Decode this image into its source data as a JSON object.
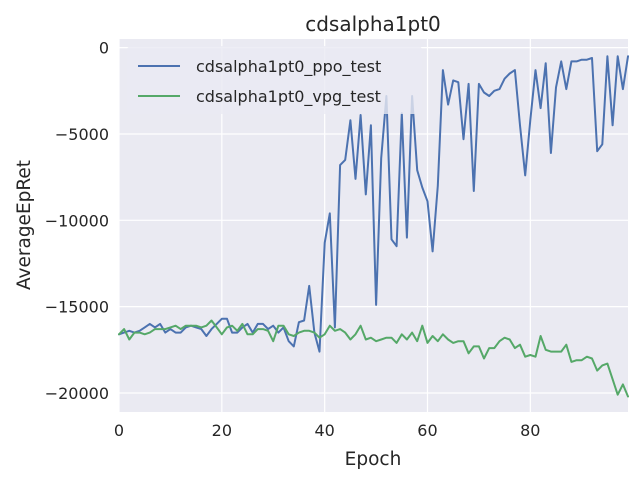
{
  "chart_data": {
    "type": "line",
    "title": "cdsalpha1pt0",
    "xlabel": "Epoch",
    "ylabel": "AverageEpRet",
    "xlim": [
      0,
      99
    ],
    "ylim": [
      -21100,
      500
    ],
    "xticks": [
      0,
      20,
      40,
      60,
      80
    ],
    "yticks": [
      0,
      -5000,
      -10000,
      -15000,
      -20000
    ],
    "xtick_labels": [
      "0",
      "20",
      "40",
      "60",
      "80"
    ],
    "ytick_labels": [
      "0",
      "−5000",
      "−10000",
      "−15000",
      "−20000"
    ],
    "grid": true,
    "legend_position": "top-left",
    "series": [
      {
        "name": "cdsalpha1pt0_ppo_test",
        "color": "#4c72b0",
        "x": [
          0,
          1,
          2,
          3,
          4,
          5,
          6,
          7,
          8,
          9,
          10,
          11,
          12,
          13,
          14,
          15,
          16,
          17,
          18,
          19,
          20,
          21,
          22,
          23,
          24,
          25,
          26,
          27,
          28,
          29,
          30,
          31,
          32,
          33,
          34,
          35,
          36,
          37,
          38,
          39,
          40,
          41,
          42,
          43,
          44,
          45,
          46,
          47,
          48,
          49,
          50,
          51,
          52,
          53,
          54,
          55,
          56,
          57,
          58,
          59,
          60,
          61,
          62,
          63,
          64,
          65,
          66,
          67,
          68,
          69,
          70,
          71,
          72,
          73,
          74,
          75,
          76,
          77,
          78,
          79,
          80,
          81,
          82,
          83,
          84,
          85,
          86,
          87,
          88,
          89,
          90,
          91,
          92,
          93,
          94,
          95,
          96,
          97,
          98,
          99
        ],
        "y": [
          -16600,
          -16500,
          -16400,
          -16500,
          -16400,
          -16200,
          -16000,
          -16200,
          -16000,
          -16500,
          -16300,
          -16500,
          -16500,
          -16200,
          -16100,
          -16200,
          -16300,
          -16700,
          -16300,
          -16000,
          -15700,
          -15700,
          -16500,
          -16500,
          -16200,
          -16000,
          -16500,
          -16000,
          -16000,
          -16300,
          -16100,
          -16500,
          -16200,
          -17000,
          -17300,
          -15900,
          -15800,
          -13800,
          -16500,
          -17600,
          -11300,
          -9600,
          -16200,
          -6800,
          -6500,
          -4200,
          -7600,
          -3900,
          -8500,
          -4500,
          -14900,
          -6400,
          -2800,
          -11100,
          -11500,
          -3800,
          -11000,
          -2800,
          -7100,
          -8100,
          -8900,
          -11800,
          -8000,
          -1300,
          -3300,
          -1900,
          -2000,
          -5300,
          -2100,
          -8300,
          -2100,
          -2600,
          -2800,
          -2500,
          -2400,
          -1800,
          -1500,
          -1300,
          -4500,
          -7400,
          -4200,
          -1300,
          -3500,
          -900,
          -6100,
          -2300,
          -800,
          -2400,
          -800,
          -800,
          -700,
          -700,
          -600,
          -6000,
          -5600,
          -500,
          -4500,
          -500,
          -2400,
          -500
        ]
      },
      {
        "name": "cdsalpha1pt0_vpg_test",
        "color": "#55a868",
        "x": [
          0,
          1,
          2,
          3,
          4,
          5,
          6,
          7,
          8,
          9,
          10,
          11,
          12,
          13,
          14,
          15,
          16,
          17,
          18,
          19,
          20,
          21,
          22,
          23,
          24,
          25,
          26,
          27,
          28,
          29,
          30,
          31,
          32,
          33,
          34,
          35,
          36,
          37,
          38,
          39,
          40,
          41,
          42,
          43,
          44,
          45,
          46,
          47,
          48,
          49,
          50,
          51,
          52,
          53,
          54,
          55,
          56,
          57,
          58,
          59,
          60,
          61,
          62,
          63,
          64,
          65,
          66,
          67,
          68,
          69,
          70,
          71,
          72,
          73,
          74,
          75,
          76,
          77,
          78,
          79,
          80,
          81,
          82,
          83,
          84,
          85,
          86,
          87,
          88,
          89,
          90,
          91,
          92,
          93,
          94,
          95,
          96,
          97,
          98,
          99
        ],
        "y": [
          -16600,
          -16300,
          -16900,
          -16500,
          -16500,
          -16600,
          -16500,
          -16300,
          -16300,
          -16300,
          -16200,
          -16100,
          -16300,
          -16100,
          -16100,
          -16100,
          -16200,
          -16100,
          -15800,
          -16200,
          -16600,
          -16200,
          -16100,
          -16400,
          -16000,
          -16600,
          -16600,
          -16300,
          -16300,
          -16400,
          -17000,
          -16100,
          -16100,
          -16600,
          -16700,
          -16500,
          -16400,
          -16400,
          -16500,
          -16800,
          -16600,
          -16100,
          -16400,
          -16300,
          -16500,
          -16900,
          -16600,
          -16100,
          -16900,
          -16800,
          -17000,
          -16900,
          -16800,
          -16800,
          -17100,
          -16600,
          -16900,
          -16500,
          -17000,
          -16100,
          -17100,
          -16700,
          -17000,
          -16600,
          -16900,
          -17100,
          -17000,
          -17000,
          -17700,
          -17300,
          -17300,
          -18000,
          -17400,
          -17400,
          -17000,
          -16800,
          -16900,
          -17400,
          -17200,
          -17900,
          -17800,
          -17900,
          -16700,
          -17500,
          -17600,
          -17600,
          -17600,
          -17200,
          -18200,
          -18100,
          -18100,
          -17900,
          -18000,
          -18700,
          -18400,
          -18300,
          -19200,
          -20100,
          -19500,
          -20200
        ]
      }
    ]
  }
}
